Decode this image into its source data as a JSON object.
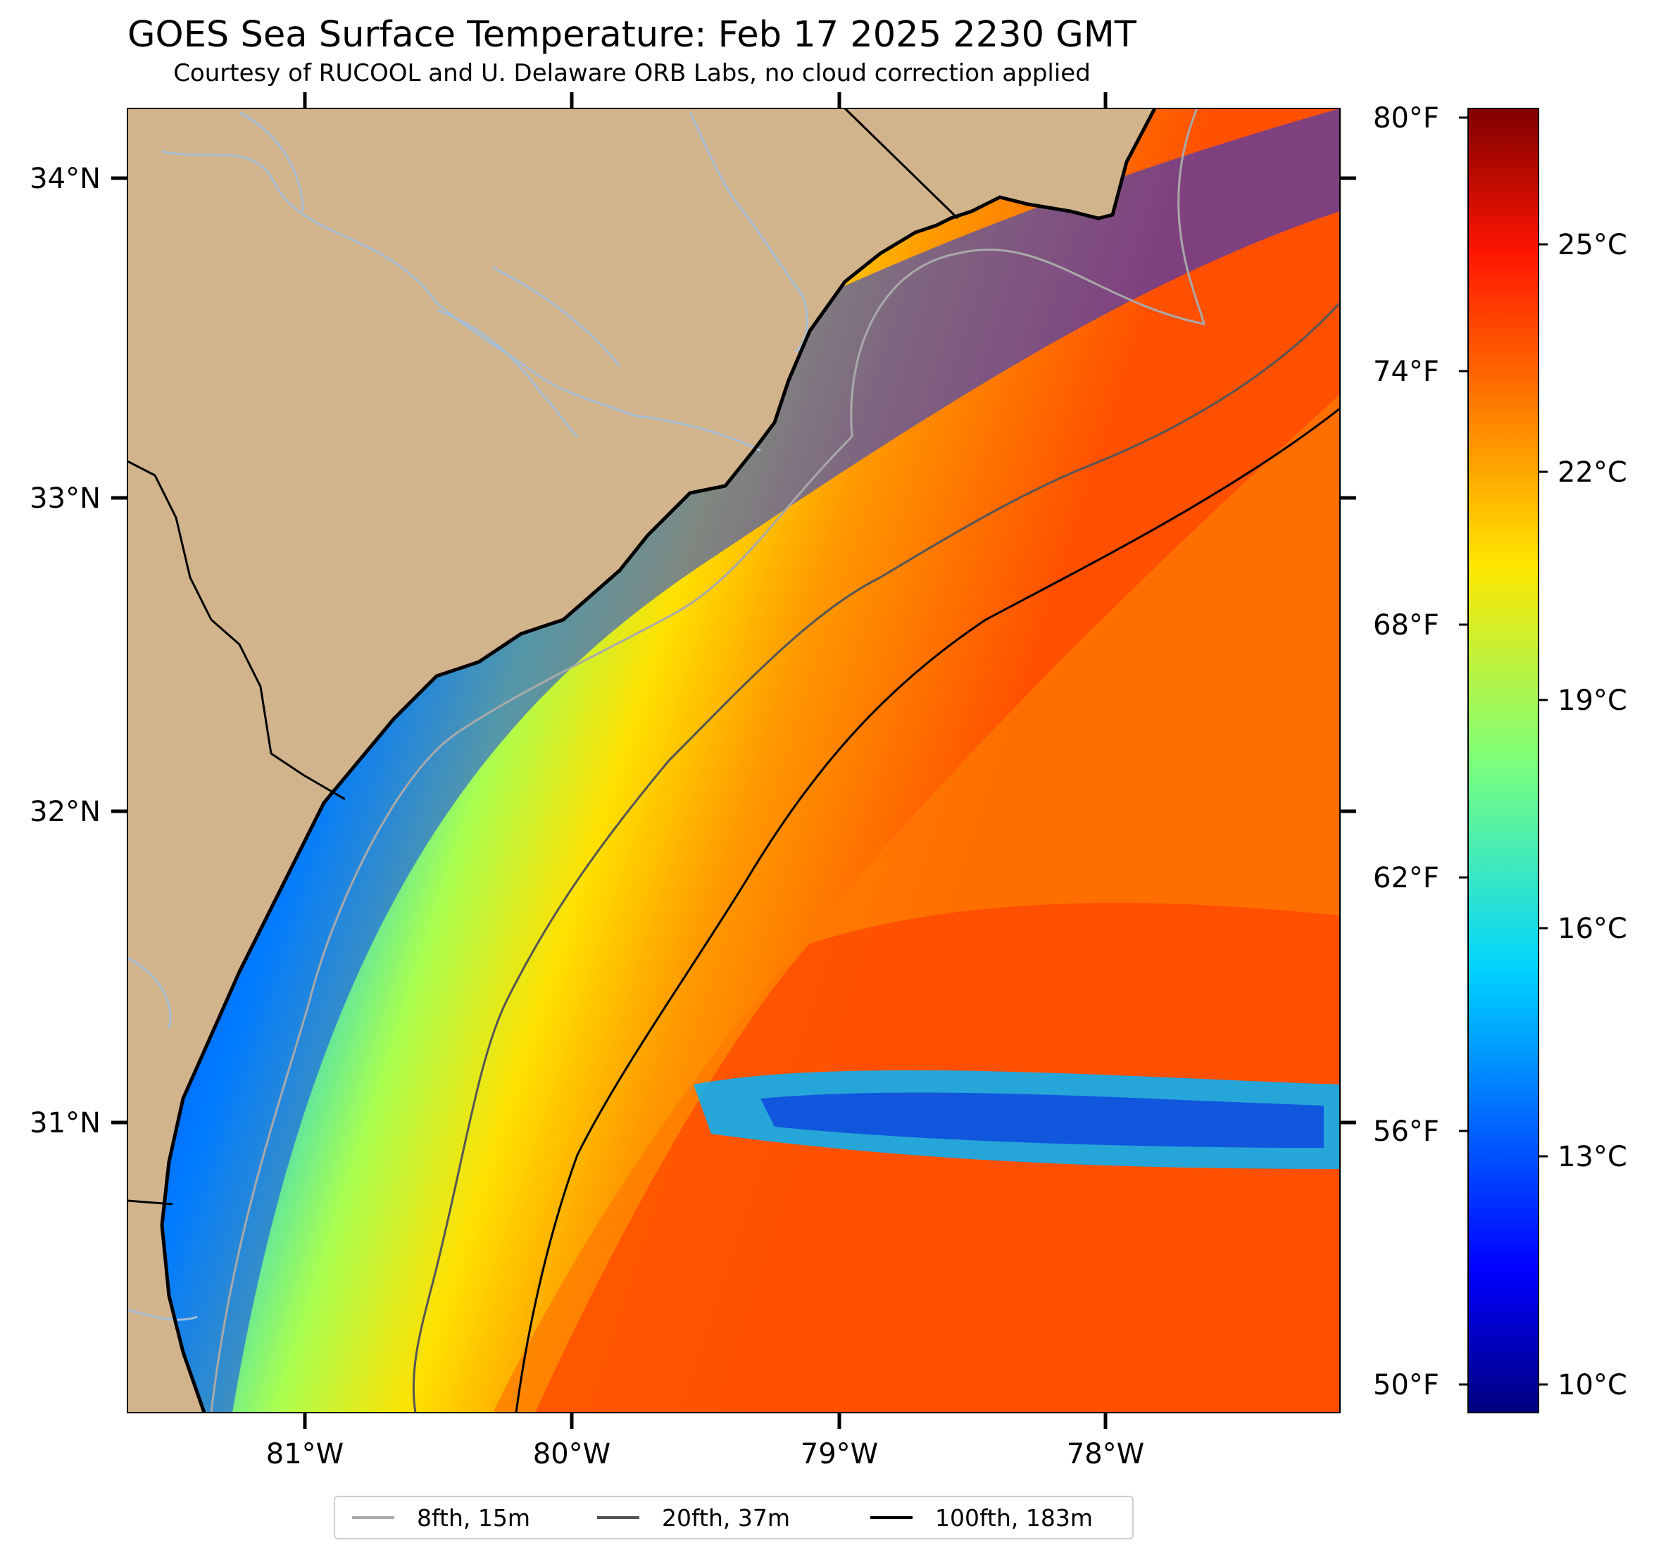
{
  "title": "GOES Sea Surface Temperature: Feb 17 2025 2230 GMT",
  "subtitle": "Courtesy of RUCOOL and U. Delaware ORB Labs, no cloud correction applied",
  "map": {
    "extent": {
      "lon_min": -81.67,
      "lon_max": -77.12,
      "lat_min": 30.09,
      "lat_max": 34.22
    },
    "lat_ticks": [
      {
        "value": 34,
        "label": "34°N"
      },
      {
        "value": 33,
        "label": "33°N"
      },
      {
        "value": 32,
        "label": "32°N"
      },
      {
        "value": 31,
        "label": "31°N"
      }
    ],
    "lon_ticks": [
      {
        "value": -81,
        "label": "81°W"
      },
      {
        "value": -80,
        "label": "80°W"
      },
      {
        "value": -79,
        "label": "79°W"
      },
      {
        "value": -78,
        "label": "78°W"
      }
    ],
    "colors": {
      "land": "#d2b48c",
      "river": "#a7bfd6",
      "coast": "#000000"
    }
  },
  "colorbar": {
    "colormap": "jet",
    "celsius_range": [
      9.5,
      26.7
    ],
    "celsius_ticks": [
      "10°C",
      "13°C",
      "16°C",
      "19°C",
      "22°C",
      "25°C"
    ],
    "fahrenheit_ticks": [
      "50°F",
      "56°F",
      "62°F",
      "68°F",
      "74°F",
      "80°F"
    ]
  },
  "legend": [
    {
      "label": "8fth, 15m",
      "color": "#a9a9a9"
    },
    {
      "label": "20fth, 37m",
      "color": "#555555"
    },
    {
      "label": "100fth, 183m",
      "color": "#000000"
    }
  ]
}
